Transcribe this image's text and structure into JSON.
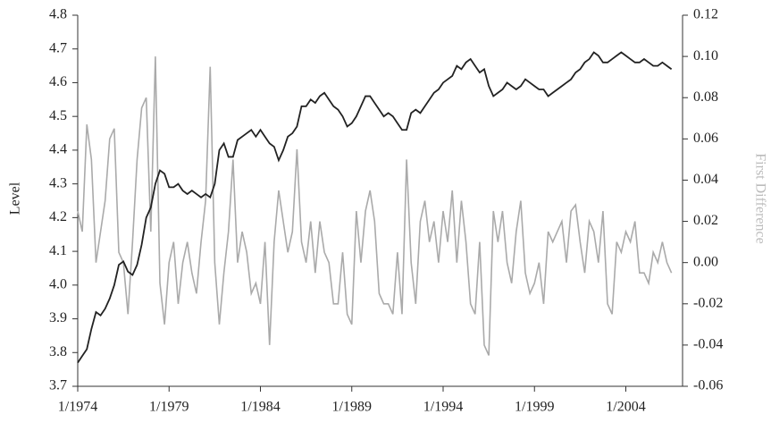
{
  "chart_data": {
    "type": "line",
    "ylabel": "Level",
    "y2label": "First Difference",
    "x": [
      "1/1974",
      "4/1974",
      "7/1974",
      "10/1974",
      "1/1975",
      "4/1975",
      "7/1975",
      "10/1975",
      "1/1976",
      "4/1976",
      "7/1976",
      "10/1976",
      "1/1977",
      "4/1977",
      "7/1977",
      "10/1977",
      "1/1978",
      "4/1978",
      "7/1978",
      "10/1978",
      "1/1979",
      "4/1979",
      "7/1979",
      "10/1979",
      "1/1980",
      "4/1980",
      "7/1980",
      "10/1980",
      "1/1981",
      "4/1981",
      "7/1981",
      "10/1981",
      "1/1982",
      "4/1982",
      "7/1982",
      "10/1982",
      "1/1983",
      "4/1983",
      "7/1983",
      "10/1983",
      "1/1984",
      "4/1984",
      "7/1984",
      "10/1984",
      "1/1985",
      "4/1985",
      "7/1985",
      "10/1985",
      "1/1986",
      "4/1986",
      "7/1986",
      "10/1986",
      "1/1987",
      "4/1987",
      "7/1987",
      "10/1987",
      "1/1988",
      "4/1988",
      "7/1988",
      "10/1988",
      "1/1989",
      "4/1989",
      "7/1989",
      "10/1989",
      "1/1990",
      "4/1990",
      "7/1990",
      "10/1990",
      "1/1991",
      "4/1991",
      "7/1991",
      "10/1991",
      "1/1992",
      "4/1992",
      "7/1992",
      "10/1992",
      "1/1993",
      "4/1993",
      "7/1993",
      "10/1993",
      "1/1994",
      "4/1994",
      "7/1994",
      "10/1994",
      "1/1995",
      "4/1995",
      "7/1995",
      "10/1995",
      "1/1996",
      "4/1996",
      "7/1996",
      "10/1996",
      "1/1997",
      "4/1997",
      "7/1997",
      "10/1997",
      "1/1998",
      "4/1998",
      "7/1998",
      "10/1998",
      "1/1999",
      "4/1999",
      "7/1999",
      "10/1999",
      "1/2000",
      "4/2000",
      "7/2000",
      "10/2000",
      "1/2001",
      "4/2001",
      "7/2001",
      "10/2001",
      "1/2002",
      "4/2002",
      "7/2002",
      "10/2002",
      "1/2003",
      "4/2003",
      "7/2003",
      "10/2003",
      "1/2004",
      "4/2004",
      "7/2004",
      "10/2004",
      "1/2005",
      "4/2005",
      "7/2005",
      "10/2005",
      "1/2006",
      "4/2006",
      "7/2006"
    ],
    "series": [
      {
        "color": "#222222",
        "axis": "y",
        "values": [
          3.77,
          3.79,
          3.81,
          3.87,
          3.92,
          3.91,
          3.93,
          3.96,
          4.0,
          4.06,
          4.07,
          4.04,
          4.03,
          4.06,
          4.12,
          4.2,
          4.23,
          4.3,
          4.34,
          4.33,
          4.29,
          4.29,
          4.3,
          4.28,
          4.27,
          4.28,
          4.27,
          4.26,
          4.27,
          4.26,
          4.3,
          4.4,
          4.42,
          4.38,
          4.38,
          4.43,
          4.44,
          4.45,
          4.46,
          4.44,
          4.46,
          4.44,
          4.42,
          4.41,
          4.37,
          4.4,
          4.44,
          4.45,
          4.47,
          4.53,
          4.53,
          4.55,
          4.54,
          4.56,
          4.57,
          4.55,
          4.53,
          4.52,
          4.5,
          4.47,
          4.48,
          4.5,
          4.53,
          4.56,
          4.56,
          4.54,
          4.52,
          4.5,
          4.51,
          4.5,
          4.48,
          4.46,
          4.46,
          4.51,
          4.52,
          4.51,
          4.53,
          4.55,
          4.57,
          4.58,
          4.6,
          4.61,
          4.62,
          4.65,
          4.64,
          4.66,
          4.67,
          4.65,
          4.63,
          4.64,
          4.59,
          4.56,
          4.57,
          4.58,
          4.6,
          4.59,
          4.58,
          4.59,
          4.61,
          4.6,
          4.59,
          4.58,
          4.58,
          4.56,
          4.57,
          4.58,
          4.59,
          4.6,
          4.61,
          4.63,
          4.64,
          4.66,
          4.67,
          4.69,
          4.68,
          4.66,
          4.66,
          4.67,
          4.68,
          4.69,
          4.68,
          4.67,
          4.66,
          4.66,
          4.67,
          4.66,
          4.65,
          4.65,
          4.66,
          4.65,
          4.64
        ]
      },
      {
        "color": "#aaaaaa",
        "axis": "y2",
        "values": [
          0.025,
          0.015,
          0.067,
          0.05,
          0.0,
          0.015,
          0.03,
          0.06,
          0.065,
          0.005,
          0.0,
          -0.025,
          0.01,
          0.05,
          0.075,
          0.08,
          0.015,
          0.1,
          -0.01,
          -0.03,
          0.0,
          0.01,
          -0.02,
          0.0,
          0.01,
          -0.005,
          -0.015,
          0.01,
          0.03,
          0.095,
          0.0,
          -0.03,
          -0.005,
          0.015,
          0.05,
          0.0,
          0.015,
          0.005,
          -0.015,
          -0.01,
          -0.02,
          0.01,
          -0.04,
          0.01,
          0.035,
          0.02,
          0.005,
          0.015,
          0.055,
          0.01,
          0.0,
          0.02,
          -0.005,
          0.02,
          0.005,
          0.0,
          -0.02,
          -0.02,
          0.005,
          -0.025,
          -0.03,
          0.025,
          0.0,
          0.025,
          0.035,
          0.02,
          -0.015,
          -0.02,
          -0.02,
          -0.025,
          0.005,
          -0.025,
          0.05,
          0.0,
          -0.02,
          0.02,
          0.03,
          0.01,
          0.02,
          0.0,
          0.025,
          0.01,
          0.035,
          0.0,
          0.03,
          0.01,
          -0.02,
          -0.025,
          0.01,
          -0.04,
          -0.045,
          0.025,
          0.01,
          0.025,
          0.0,
          -0.01,
          0.015,
          0.03,
          -0.005,
          -0.015,
          -0.01,
          0.0,
          -0.02,
          0.015,
          0.01,
          0.015,
          0.02,
          0.0,
          0.025,
          0.028,
          0.01,
          -0.005,
          0.02,
          0.015,
          0.0,
          0.025,
          -0.02,
          -0.025,
          0.01,
          0.005,
          0.015,
          0.01,
          0.02,
          -0.005,
          -0.005,
          -0.01,
          0.005,
          0.0,
          0.01,
          0.0,
          -0.005
        ]
      }
    ],
    "ylim": [
      3.7,
      4.8
    ],
    "yticks": [
      3.7,
      3.8,
      3.9,
      {
        "value": 4.0,
        "label": "4.0"
      },
      4.1,
      4.2,
      4.3,
      4.4,
      4.5,
      4.6,
      4.7,
      4.8
    ],
    "y2lim": [
      -0.06,
      0.12
    ],
    "y2ticks": [
      -0.06,
      -0.04,
      -0.02,
      {
        "value": 0,
        "label": "0.00"
      },
      0.02,
      0.04,
      0.06,
      0.08,
      {
        "value": 0.1,
        "label": "0.10"
      },
      0.12
    ]
  }
}
